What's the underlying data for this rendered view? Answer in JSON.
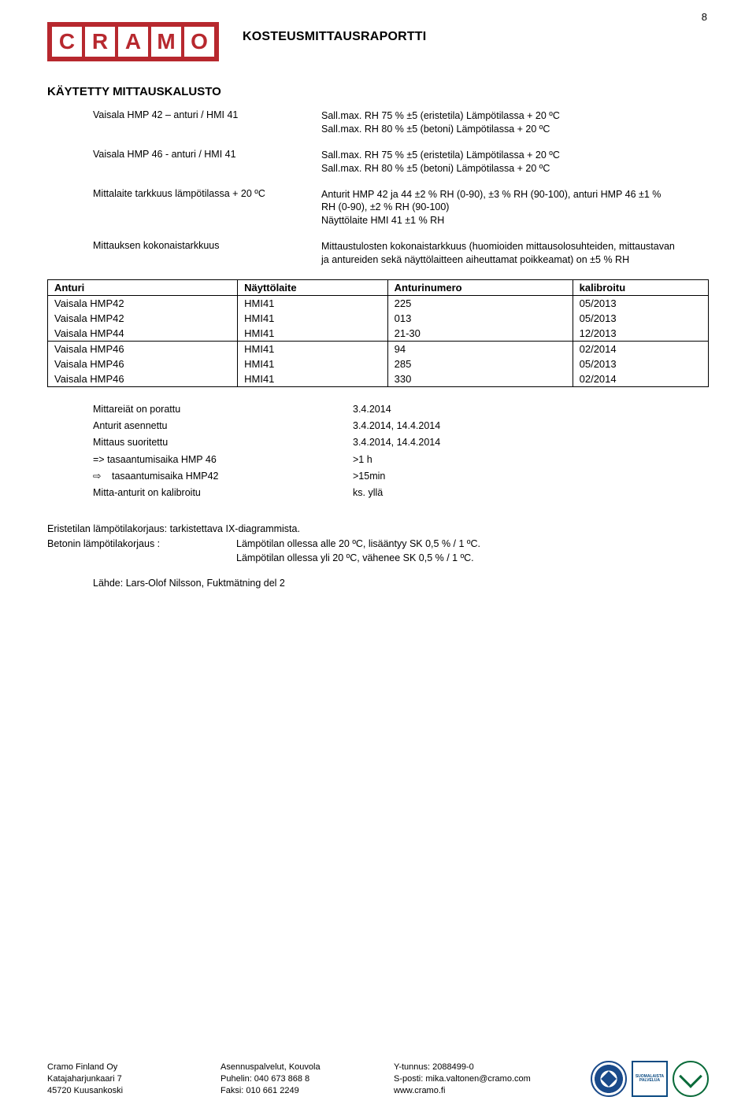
{
  "pageNumber": "8",
  "logoLetters": [
    "C",
    "R",
    "A",
    "M",
    "O"
  ],
  "docTitle": "KOSTEUSMITTAUSRAPORTTI",
  "sectionTitle": "KÄYTETTY MITTAUSKALUSTO",
  "specs": [
    {
      "left": "Vaisala HMP 42 – anturi / HMI 41",
      "right": [
        "Sall.max. RH 75 % ±5 (eristetila) Lämpötilassa + 20 ºC",
        "Sall.max. RH 80 % ±5 (betoni)   Lämpötilassa + 20 ºC"
      ]
    },
    {
      "left": "Vaisala HMP 46 - anturi / HMI 41",
      "right": [
        "Sall.max. RH 75 % ±5 (eristetila) Lämpötilassa + 20 ºC",
        "Sall.max. RH 80 % ±5 (betoni)   Lämpötilassa + 20 ºC"
      ]
    },
    {
      "left": "Mittalaite tarkkuus lämpötilassa + 20 ºC",
      "right": [
        "Anturit HMP 42 ja 44  ±2 % RH (0-90), ±3 % RH (90-100), anturi HMP 46 ±1 %",
        "RH (0-90), ±2 % RH (90-100)",
        "Näyttölaite HMI 41 ±1 % RH"
      ]
    },
    {
      "left": "Mittauksen kokonaistarkkuus",
      "right": [
        "Mittaustulosten kokonaistarkkuus (huomioiden mittausolosuhteiden, mittaustavan",
        "ja antureiden sekä näyttölaitteen aiheuttamat poikkeamat) on ±5 % RH"
      ]
    }
  ],
  "table": {
    "headers": [
      "Anturi",
      "Näyttölaite",
      "Anturinumero",
      "kalibroitu"
    ],
    "rowsA": [
      [
        "Vaisala HMP42",
        "HMI41",
        "225",
        "05/2013"
      ],
      [
        "Vaisala HMP42",
        "HMI41",
        "013",
        "05/2013"
      ],
      [
        "Vaisala HMP44",
        "HMI41",
        "21-30",
        "12/2013"
      ]
    ],
    "rowsB": [
      [
        "Vaisala HMP46",
        "HMI41",
        "94",
        "02/2014"
      ],
      [
        "Vaisala HMP46",
        "HMI41",
        "285",
        "05/2013"
      ],
      [
        "Vaisala HMP46",
        "HMI41",
        "330",
        "02/2014"
      ]
    ]
  },
  "timing": [
    {
      "l": "Mittareiät on porattu",
      "r": "3.4.2014"
    },
    {
      "l": "Anturit asennettu",
      "r": "3.4.2014, 14.4.2014"
    },
    {
      "l": "Mittaus suoritettu",
      "r": "3.4.2014, 14.4.2014"
    },
    {
      "l": "=> tasaantumisaika HMP 46",
      "r": ">1 h"
    },
    {
      "l": "tasaantumisaika HMP42",
      "r": ">15min",
      "indent": true
    },
    {
      "l": "Mitta-anturit on kalibroitu",
      "r": "ks. yllä"
    }
  ],
  "correction": {
    "line1": "Eristetilan lämpötilakorjaus: tarkistettava IX-diagrammista.",
    "label": "Betonin lämpötilakorjaus :",
    "r1": "Lämpötilan ollessa alle 20 ºC, lisääntyy SK 0,5 % / 1 ºC.",
    "r2": "Lämpötilan ollessa yli  20 ºC, vähenee SK 0,5 % / 1 ºC."
  },
  "source": "Lähde: Lars-Olof Nilsson, Fuktmätning del 2",
  "footer": {
    "a": [
      "Cramo Finland Oy",
      "Katajaharjunkaari 7",
      "45720 Kuusankoski"
    ],
    "b": [
      "Asennuspalvelut, Kouvola",
      "Puhelin: 040 673 868 8",
      "Faksi:   010 661 2249"
    ],
    "c": [
      "Y-tunnus: 2088499-0",
      "S-posti: mika.valtonen@cramo.com",
      "www.cramo.fi"
    ],
    "squareText": "SUOMALAISTA PALVELUA"
  }
}
